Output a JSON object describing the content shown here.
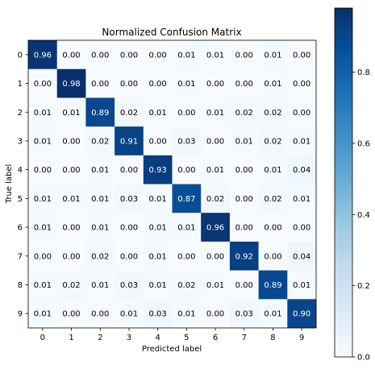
{
  "chart_data": {
    "type": "heatmap",
    "title": "Normalized Confusion Matrix",
    "xlabel": "Predicted label",
    "ylabel": "True label",
    "x_categories": [
      "0",
      "1",
      "2",
      "3",
      "4",
      "5",
      "6",
      "7",
      "8",
      "9"
    ],
    "y_categories": [
      "0",
      "1",
      "2",
      "3",
      "4",
      "5",
      "6",
      "7",
      "8",
      "9"
    ],
    "values": [
      [
        0.96,
        0.0,
        0.0,
        0.0,
        0.0,
        0.01,
        0.01,
        0.0,
        0.01,
        0.0
      ],
      [
        0.0,
        0.98,
        0.0,
        0.0,
        0.0,
        0.01,
        0.0,
        0.0,
        0.01,
        0.0
      ],
      [
        0.01,
        0.01,
        0.89,
        0.02,
        0.01,
        0.0,
        0.01,
        0.02,
        0.02,
        0.0
      ],
      [
        0.01,
        0.0,
        0.02,
        0.91,
        0.0,
        0.03,
        0.0,
        0.01,
        0.02,
        0.01
      ],
      [
        0.0,
        0.0,
        0.01,
        0.0,
        0.93,
        0.0,
        0.01,
        0.0,
        0.01,
        0.04
      ],
      [
        0.01,
        0.01,
        0.01,
        0.03,
        0.01,
        0.87,
        0.02,
        0.0,
        0.02,
        0.01
      ],
      [
        0.01,
        0.0,
        0.01,
        0.0,
        0.01,
        0.01,
        0.96,
        0.0,
        0.0,
        0.0
      ],
      [
        0.0,
        0.0,
        0.02,
        0.0,
        0.01,
        0.0,
        0.0,
        0.92,
        0.0,
        0.04
      ],
      [
        0.01,
        0.02,
        0.01,
        0.03,
        0.01,
        0.02,
        0.01,
        0.0,
        0.89,
        0.01
      ],
      [
        0.01,
        0.0,
        0.0,
        0.01,
        0.03,
        0.01,
        0.0,
        0.03,
        0.01,
        0.9
      ]
    ],
    "colormap": "Blues",
    "value_range": [
      0.0,
      0.98
    ],
    "colorbar_ticks": [
      "0.0",
      "0.2",
      "0.4",
      "0.6",
      "0.8"
    ],
    "colorbar_tick_values": [
      0.0,
      0.2,
      0.4,
      0.6,
      0.8
    ],
    "grid": false
  }
}
